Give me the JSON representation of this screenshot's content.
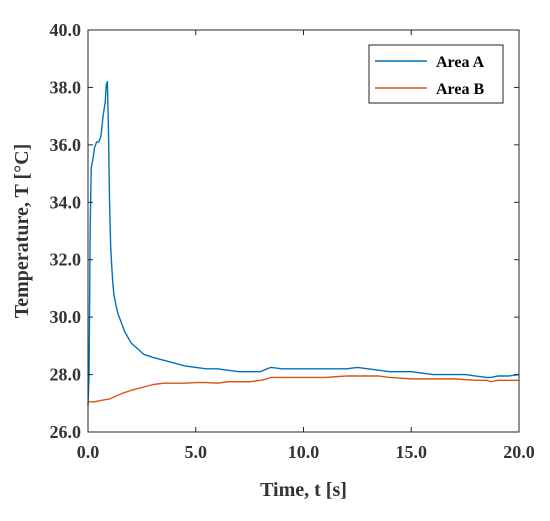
{
  "chart_data": {
    "type": "line",
    "title": "",
    "xlabel": "Time, t [s]",
    "ylabel": "Temperature, T [°C]",
    "xlim": [
      0,
      20
    ],
    "ylim": [
      26,
      40
    ],
    "x_ticks": [
      0,
      5,
      10,
      15,
      20
    ],
    "x_tick_labels": [
      "0.0",
      "5.0",
      "10.0",
      "15.0",
      "20.0"
    ],
    "y_ticks": [
      26,
      28,
      30,
      32,
      34,
      36,
      38,
      40
    ],
    "y_tick_labels": [
      "26.0",
      "28.0",
      "30.0",
      "32.0",
      "34.0",
      "36.0",
      "38.0",
      "40.0"
    ],
    "grid": false,
    "legend_position": "top-right",
    "series": [
      {
        "name": "Area A",
        "color": "#0072BD",
        "x": [
          0.0,
          0.05,
          0.1,
          0.15,
          0.2,
          0.25,
          0.3,
          0.4,
          0.5,
          0.6,
          0.7,
          0.8,
          0.85,
          0.9,
          0.95,
          1.0,
          1.05,
          1.1,
          1.15,
          1.2,
          1.3,
          1.4,
          1.5,
          1.7,
          2.0,
          2.3,
          2.6,
          3.0,
          3.5,
          4.0,
          4.5,
          5.0,
          5.5,
          6.0,
          7.0,
          8.0,
          8.3,
          8.5,
          9.0,
          10.0,
          11.0,
          12.0,
          12.5,
          13.0,
          14.0,
          15.0,
          16.0,
          17.0,
          17.5,
          18.0,
          18.5,
          18.7,
          19.0,
          19.5,
          20.0
        ],
        "y": [
          26.9,
          28.0,
          33.0,
          35.2,
          35.4,
          35.6,
          35.9,
          36.1,
          36.1,
          36.3,
          37.0,
          37.5,
          38.1,
          38.2,
          36.5,
          34.0,
          32.5,
          31.8,
          31.2,
          30.8,
          30.4,
          30.1,
          29.9,
          29.5,
          29.1,
          28.9,
          28.7,
          28.6,
          28.5,
          28.4,
          28.3,
          28.25,
          28.2,
          28.2,
          28.1,
          28.1,
          28.2,
          28.25,
          28.2,
          28.2,
          28.2,
          28.2,
          28.25,
          28.2,
          28.1,
          28.1,
          28.0,
          28.0,
          28.0,
          27.95,
          27.9,
          27.9,
          27.95,
          27.95,
          28.0
        ]
      },
      {
        "name": "Area B",
        "color": "#D95319",
        "x": [
          0.0,
          0.3,
          0.6,
          1.0,
          1.3,
          1.6,
          2.0,
          2.5,
          3.0,
          3.5,
          4.0,
          4.5,
          5.0,
          5.5,
          6.0,
          6.5,
          7.0,
          7.5,
          8.0,
          8.3,
          8.5,
          9.0,
          10.0,
          11.0,
          12.0,
          12.5,
          13.0,
          13.5,
          14.0,
          15.0,
          16.0,
          17.0,
          18.0,
          18.5,
          18.7,
          19.0,
          19.5,
          20.0
        ],
        "y": [
          27.05,
          27.05,
          27.1,
          27.15,
          27.25,
          27.35,
          27.45,
          27.55,
          27.65,
          27.7,
          27.7,
          27.7,
          27.72,
          27.72,
          27.7,
          27.75,
          27.75,
          27.75,
          27.8,
          27.85,
          27.9,
          27.9,
          27.9,
          27.9,
          27.95,
          27.95,
          27.95,
          27.95,
          27.9,
          27.85,
          27.85,
          27.85,
          27.8,
          27.8,
          27.75,
          27.8,
          27.8,
          27.8
        ]
      }
    ]
  }
}
